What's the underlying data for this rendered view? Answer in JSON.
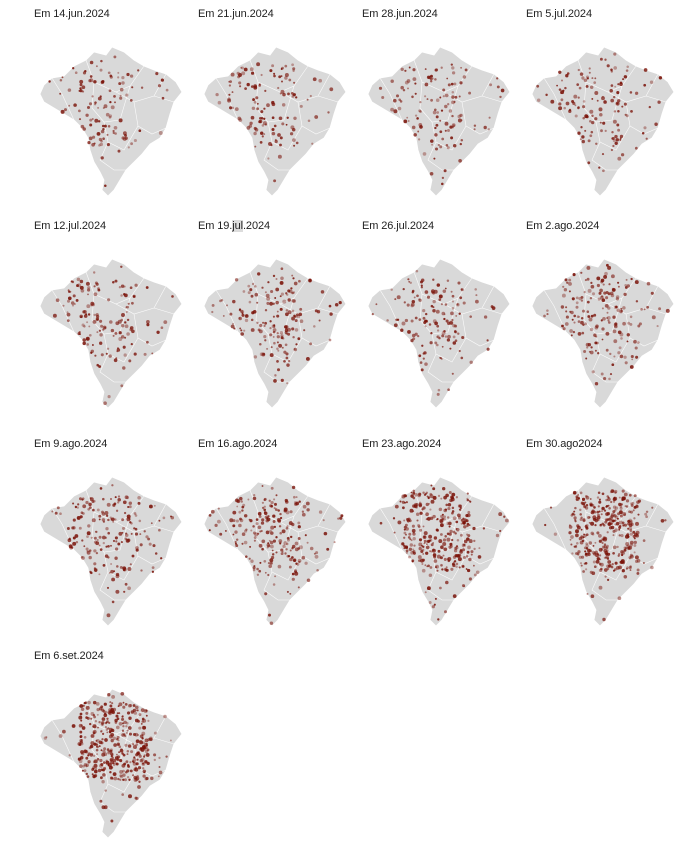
{
  "colors": {
    "map_fill": "#d9d9d9",
    "fire_dot": "#7a1208",
    "background": "#ffffff"
  },
  "panels": [
    {
      "label_pre": "Em 14.jun.2024",
      "label_hl": "",
      "label_post": "",
      "intensity": 0.22
    },
    {
      "label_pre": "Em 21.jun.2024",
      "label_hl": "",
      "label_post": "",
      "intensity": 0.25
    },
    {
      "label_pre": "Em 28.jun.2024",
      "label_hl": "",
      "label_post": "",
      "intensity": 0.25
    },
    {
      "label_pre": "Em 5.jul.2024",
      "label_hl": "",
      "label_post": "",
      "intensity": 0.28
    },
    {
      "label_pre": "Em 12.jul.2024",
      "label_hl": "",
      "label_post": "",
      "intensity": 0.3
    },
    {
      "label_pre": "Em 19.",
      "label_hl": "jul",
      "label_post": ".2024",
      "intensity": 0.38
    },
    {
      "label_pre": "Em 26.jul.2024",
      "label_hl": "",
      "label_post": "",
      "intensity": 0.3
    },
    {
      "label_pre": "Em 2.ago.2024",
      "label_hl": "",
      "label_post": "",
      "intensity": 0.4
    },
    {
      "label_pre": "Em 9.ago.2024",
      "label_hl": "",
      "label_post": "",
      "intensity": 0.42
    },
    {
      "label_pre": "Em 16.ago.2024",
      "label_hl": "",
      "label_post": "",
      "intensity": 0.5
    },
    {
      "label_pre": "Em 23.ago.2024",
      "label_hl": "",
      "label_post": "",
      "intensity": 0.78
    },
    {
      "label_pre": "Em 30.ago2024",
      "label_hl": "",
      "label_post": "",
      "intensity": 0.9
    },
    {
      "label_pre": "Em 6.set.2024",
      "label_hl": "",
      "label_post": "",
      "intensity": 1.0
    }
  ]
}
